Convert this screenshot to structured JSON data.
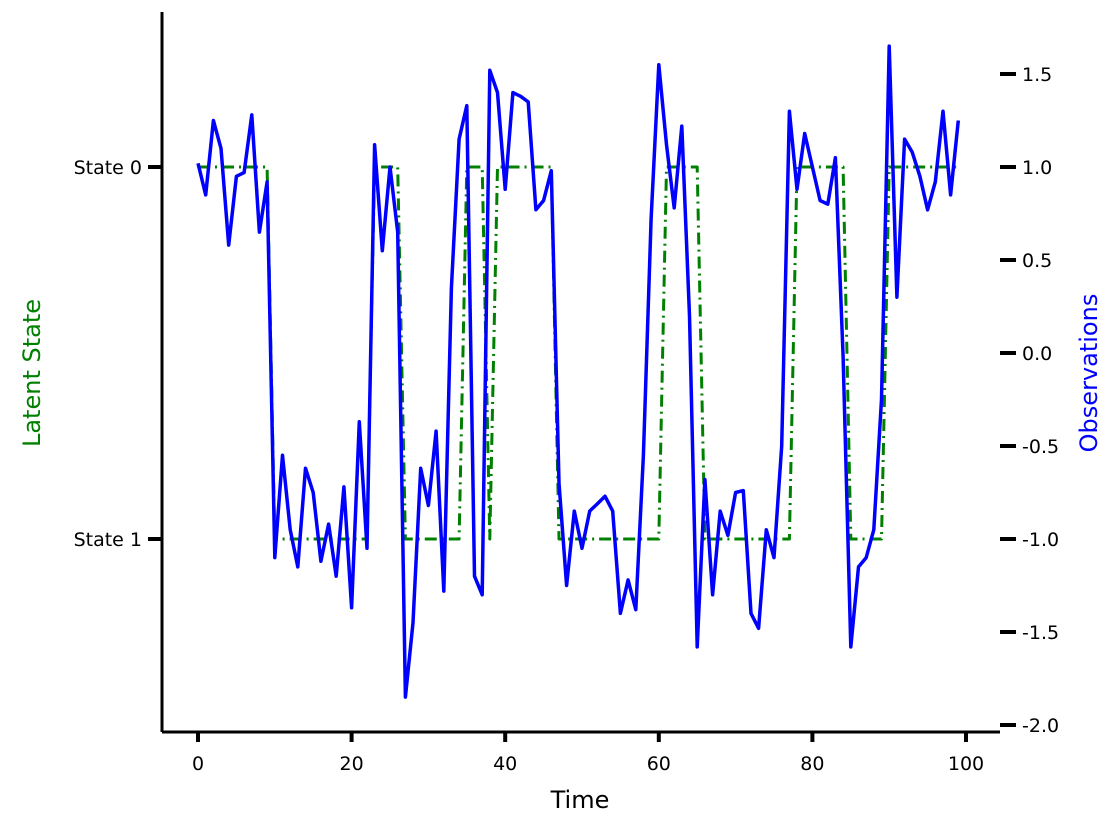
{
  "chart_data": {
    "type": "line",
    "xlabel": "Time",
    "ylabel_left": "Latent State",
    "ylabel_right": "Observations",
    "colors": {
      "state": "#008000",
      "obs": "#0000ff",
      "axis": "#000000",
      "left_label": "#008000",
      "right_label": "#0000ff"
    },
    "xlim": [
      -5,
      104
    ],
    "x_ticks": [
      0,
      20,
      40,
      60,
      80,
      100
    ],
    "x_tick_labels": [
      "0",
      "20",
      "40",
      "60",
      "80",
      "100"
    ],
    "left_ylim": [
      -0.5,
      1.5
    ],
    "left_ticks": [
      0,
      1
    ],
    "left_tick_labels": [
      "State 0",
      "State 1"
    ],
    "right_ylim": [
      -2.0,
      1.75
    ],
    "right_ticks": [
      1.5,
      1.0,
      0.5,
      0.0,
      -0.5,
      -1.0,
      -1.5,
      -2.0
    ],
    "right_tick_labels": [
      "1.5",
      "1.0",
      "0.5",
      "0.0",
      "-0.5",
      "-1.0",
      "-1.5",
      "-2.0"
    ],
    "series": [
      {
        "name": "",
        "axis": "left",
        "style": "dashed",
        "x": [
          0,
          1,
          2,
          3,
          4,
          5,
          6,
          7,
          8,
          9,
          10,
          11,
          12,
          13,
          14,
          15,
          16,
          17,
          18,
          19,
          20,
          21,
          22,
          23,
          24,
          25,
          26,
          27,
          28,
          29,
          30,
          31,
          32,
          33,
          34,
          35,
          36,
          37,
          38,
          39,
          40,
          41,
          42,
          43,
          44,
          45,
          46,
          47,
          48,
          49,
          50,
          51,
          52,
          53,
          54,
          55,
          56,
          57,
          58,
          59,
          60,
          61,
          62,
          63,
          64,
          65,
          66,
          67,
          68,
          69,
          70,
          71,
          72,
          73,
          74,
          75,
          76,
          77,
          78,
          79,
          80,
          81,
          82,
          83,
          84,
          85,
          86,
          87,
          88,
          89,
          90,
          91,
          92,
          93,
          94,
          95,
          96,
          97,
          98,
          99
        ],
        "y": [
          0,
          0,
          0,
          0,
          0,
          0,
          0,
          0,
          0,
          0,
          1,
          1,
          1,
          1,
          1,
          1,
          1,
          1,
          1,
          1,
          1,
          1,
          1,
          0,
          0,
          0,
          0,
          1,
          1,
          1,
          1,
          1,
          1,
          1,
          1,
          0,
          0,
          0,
          1,
          0,
          0,
          0,
          0,
          0,
          0,
          0,
          0,
          1,
          1,
          1,
          1,
          1,
          1,
          1,
          1,
          1,
          1,
          1,
          1,
          1,
          1,
          0,
          0,
          0,
          0,
          0,
          1,
          1,
          1,
          1,
          1,
          1,
          1,
          1,
          1,
          1,
          1,
          1,
          0,
          0,
          0,
          0,
          0,
          0,
          0,
          1,
          1,
          1,
          1,
          1,
          0,
          0,
          0,
          0,
          0,
          0,
          0,
          0,
          0,
          0
        ]
      },
      {
        "name": "",
        "axis": "right",
        "style": "solid",
        "x": [
          0,
          1,
          2,
          3,
          4,
          5,
          6,
          7,
          8,
          9,
          10,
          11,
          12,
          13,
          14,
          15,
          16,
          17,
          18,
          19,
          20,
          21,
          22,
          23,
          24,
          25,
          26,
          27,
          28,
          29,
          30,
          31,
          32,
          33,
          34,
          35,
          36,
          37,
          38,
          39,
          40,
          41,
          42,
          43,
          44,
          45,
          46,
          47,
          48,
          49,
          50,
          51,
          52,
          53,
          54,
          55,
          56,
          57,
          58,
          59,
          60,
          61,
          62,
          63,
          64,
          65,
          66,
          67,
          68,
          69,
          70,
          71,
          72,
          73,
          74,
          75,
          76,
          77,
          78,
          79,
          80,
          81,
          82,
          83,
          84,
          85,
          86,
          87,
          88,
          89,
          90,
          91,
          92,
          93,
          94,
          95,
          96,
          97,
          98,
          99
        ],
        "y": [
          1.02,
          0.85,
          1.25,
          1.1,
          0.58,
          0.95,
          0.97,
          1.28,
          0.65,
          0.92,
          -1.1,
          -0.55,
          -0.95,
          -1.15,
          -0.62,
          -0.75,
          -1.12,
          -0.92,
          -1.2,
          -0.72,
          -1.37,
          -0.37,
          -1.05,
          1.12,
          0.55,
          1.0,
          0.65,
          -1.85,
          -1.45,
          -0.62,
          -0.82,
          -0.42,
          -1.28,
          0.35,
          1.15,
          1.33,
          -1.2,
          -1.3,
          1.52,
          1.4,
          0.88,
          1.4,
          1.38,
          1.35,
          0.77,
          0.82,
          0.98,
          -0.7,
          -1.25,
          -0.85,
          -1.05,
          -0.85,
          -0.81,
          -0.77,
          -0.85,
          -1.4,
          -1.22,
          -1.38,
          -0.55,
          0.72,
          1.55,
          1.12,
          0.78,
          1.22,
          0.2,
          -1.58,
          -0.68,
          -1.3,
          -0.85,
          -0.98,
          -0.75,
          -0.74,
          -1.4,
          -1.48,
          -0.95,
          -1.1,
          -0.5,
          1.3,
          0.88,
          1.18,
          1.0,
          0.82,
          0.8,
          1.05,
          -0.02,
          -1.58,
          -1.15,
          -1.1,
          -0.95,
          -0.25,
          1.65,
          0.3,
          1.15,
          1.08,
          0.95,
          0.77,
          0.92,
          1.3,
          0.85,
          1.25
        ]
      }
    ]
  }
}
